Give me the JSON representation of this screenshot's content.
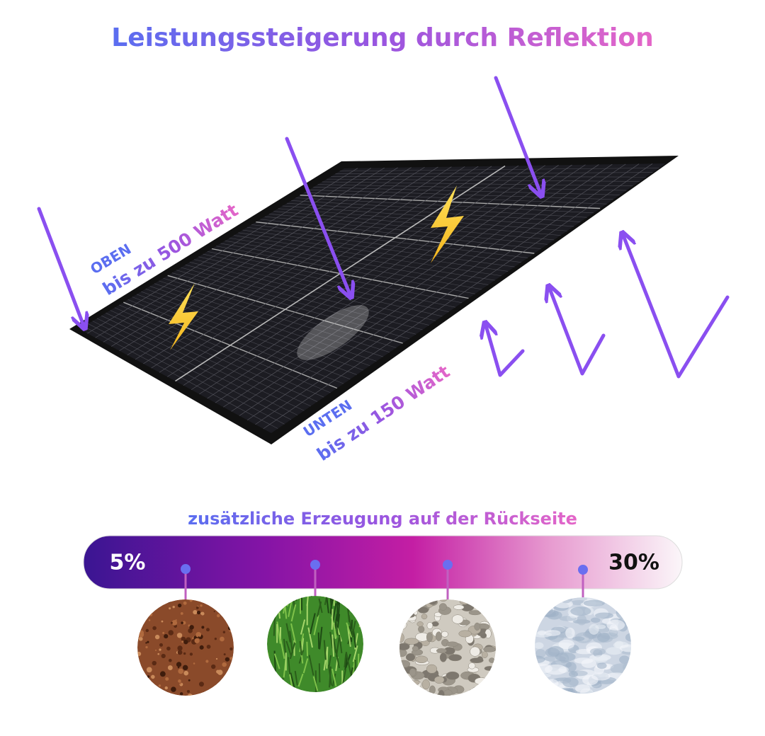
{
  "header": {
    "title": "Leistungssteigerung durch Reflektion"
  },
  "panel": {
    "top_label": "OBEN",
    "top_value": "bis zu 500 Watt",
    "bottom_label": "UNTEN",
    "bottom_value": "bis zu 150 Watt"
  },
  "scale": {
    "title": "zusätzliche Erzeugung auf der Rückseite",
    "min_label": "5%",
    "max_label": "30%"
  }
}
